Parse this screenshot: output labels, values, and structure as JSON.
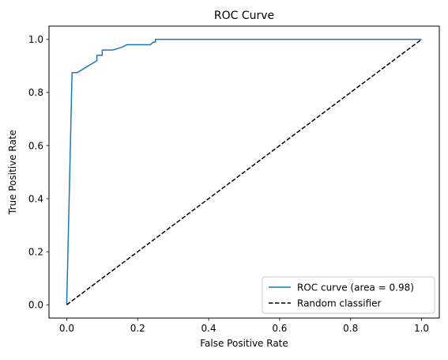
{
  "chart_data": {
    "type": "line",
    "title": "ROC Curve",
    "xlabel": "False Positive Rate",
    "ylabel": "True Positive Rate",
    "xlim": [
      -0.05,
      1.05
    ],
    "ylim": [
      -0.05,
      1.05
    ],
    "xticks": [
      0.0,
      0.2,
      0.4,
      0.6,
      0.8,
      1.0
    ],
    "yticks": [
      0.0,
      0.2,
      0.4,
      0.6,
      0.8,
      1.0
    ],
    "xtick_labels": [
      "0.0",
      "0.2",
      "0.4",
      "0.6",
      "0.8",
      "1.0"
    ],
    "ytick_labels": [
      "0.0",
      "0.2",
      "0.4",
      "0.6",
      "0.8",
      "1.0"
    ],
    "grid": false,
    "legend_position": "bottom-right",
    "series": [
      {
        "name": "ROC curve (area = 0.98)",
        "color": "#1f77b4",
        "style": "solid",
        "x": [
          0.0,
          0.015,
          0.015,
          0.03,
          0.085,
          0.085,
          0.1,
          0.1,
          0.13,
          0.155,
          0.17,
          0.175,
          0.235,
          0.245,
          0.25,
          0.25,
          1.0
        ],
        "y": [
          0.0,
          0.875,
          0.875,
          0.875,
          0.92,
          0.94,
          0.94,
          0.96,
          0.96,
          0.97,
          0.98,
          0.98,
          0.98,
          0.99,
          0.99,
          1.0,
          1.0
        ]
      },
      {
        "name": "Random classifier",
        "color": "#000000",
        "style": "dashed",
        "x": [
          0.0,
          1.0
        ],
        "y": [
          0.0,
          1.0
        ]
      }
    ]
  }
}
